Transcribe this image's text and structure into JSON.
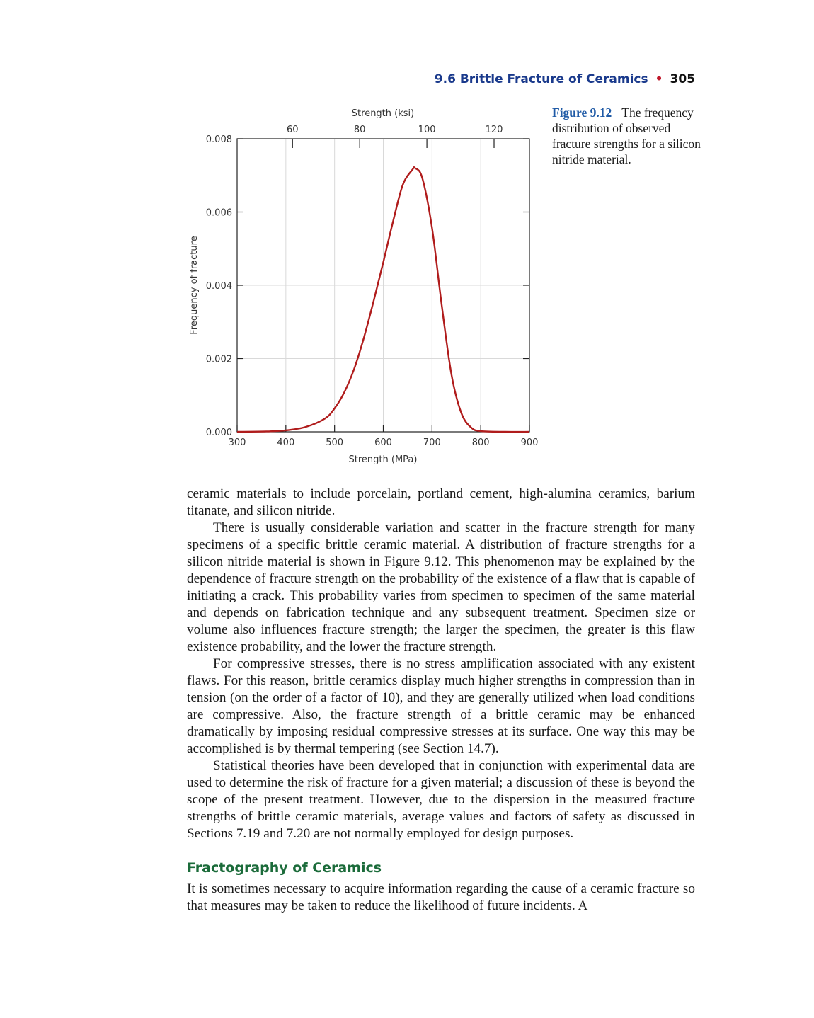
{
  "running_head": {
    "section": "9.6 Brittle Fracture of Ceramics",
    "bullet": "•",
    "page_number": "305"
  },
  "figure": {
    "label": "Figure 9.12",
    "caption": "The frequency distribution of observed fracture strengths for a silicon nitride material."
  },
  "chart_data": {
    "type": "line",
    "title": "",
    "xlabel": "Strength (MPa)",
    "x2label": "Strength (ksi)",
    "ylabel": "Frequency of fracture",
    "xlim": [
      300,
      900
    ],
    "ylim": [
      0,
      0.008
    ],
    "x_ticks": [
      "300",
      "400",
      "500",
      "600",
      "700",
      "800",
      "900"
    ],
    "x_tick_values": [
      300,
      400,
      500,
      600,
      700,
      800,
      900
    ],
    "x2_ticks": [
      "60",
      "80",
      "100",
      "120"
    ],
    "x2_tick_values": [
      60,
      80,
      100,
      120
    ],
    "ksi_per_mpa": 0.145038,
    "y_ticks": [
      "0.000",
      "0.002",
      "0.004",
      "0.006",
      "0.008"
    ],
    "y_tick_values": [
      0,
      0.002,
      0.004,
      0.006,
      0.008
    ],
    "grid": true,
    "color": "#b01c1c",
    "series": [
      {
        "x": [
          300,
          360,
          400,
          440,
          480,
          500,
          520,
          540,
          560,
          580,
          600,
          620,
          640,
          660,
          665,
          680,
          700,
          720,
          740,
          760,
          780,
          800,
          850,
          900
        ],
        "y": [
          0.0,
          1e-05,
          4e-05,
          0.00013,
          0.00036,
          0.00064,
          0.00108,
          0.00171,
          0.00256,
          0.00356,
          0.00463,
          0.00574,
          0.00674,
          0.00716,
          0.0072,
          0.00693,
          0.00557,
          0.00345,
          0.00156,
          0.00052,
          0.00012,
          2e-05,
          0.0,
          0.0
        ]
      }
    ]
  },
  "body": {
    "p1": "ceramic materials to include porcelain, portland cement, high-alumina ceramics, barium titanate, and silicon nitride.",
    "p2": "There is usually considerable variation and scatter in the fracture strength for many specimens of a specific brittle ceramic material. A distribution of fracture strengths for a silicon nitride material is shown in Figure 9.12. This phenomenon may be explained by the dependence of fracture strength on the probability of the existence of a flaw that is capable of initiating a crack. This probability varies from specimen to specimen of the same material and depends on fabrication technique and any subsequent treatment. Specimen size or volume also influences fracture strength; the larger the specimen, the greater is this flaw existence probability, and the lower the fracture strength.",
    "p3": "For compressive stresses, there is no stress amplification associated with any existent flaws. For this reason, brittle ceramics display much higher strengths in compression than in tension (on the order of a factor of 10), and they are generally utilized when load conditions are compressive. Also, the fracture strength of a brittle ceramic may be enhanced dramatically by imposing residual compressive stresses at its surface. One way this may be accomplished is by thermal tempering (see Section 14.7).",
    "p4": "Statistical theories have been developed that in conjunction with experimental data are used to determine the risk of fracture for a given material; a discussion of these is beyond the scope of the present treatment. However, due to the dispersion in the measured fracture strengths of brittle ceramic materials, average values and factors of safety as discussed in Sections 7.19 and 7.20 are not normally employed for design purposes.",
    "heading": "Fractography of Ceramics",
    "p5": "It is sometimes necessary to acquire information regarding the cause of a ceramic fracture so that measures may be taken to reduce the likelihood of future incidents. A"
  }
}
